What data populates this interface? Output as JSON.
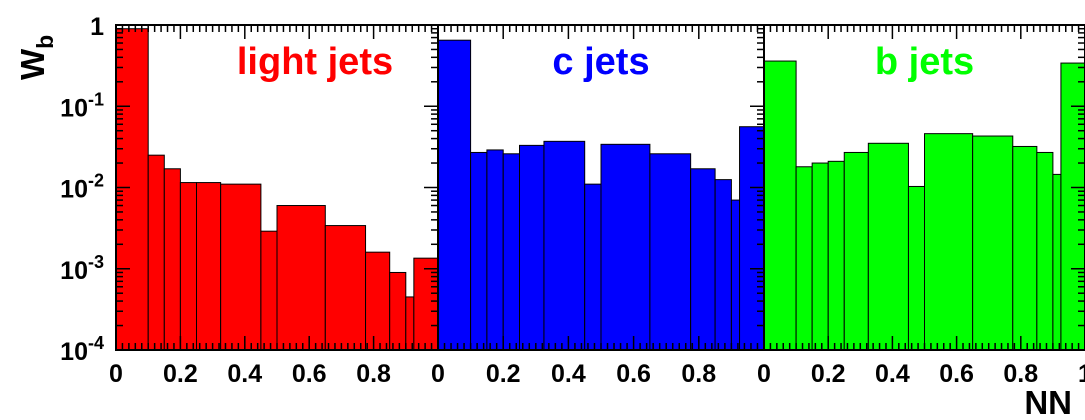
{
  "chart_data": {
    "type": "bar",
    "ylabel": "W",
    "ylabel_subscript": "b",
    "xlabel": "NN",
    "y_scale": "log",
    "ylim": [
      0.0001,
      1
    ],
    "y_tick_values": [
      1,
      0.1,
      0.01,
      0.001,
      0.0001
    ],
    "y_tick_labels": [
      {
        "base": "1",
        "exp": ""
      },
      {
        "base": "10",
        "exp": "-1"
      },
      {
        "base": "10",
        "exp": "-2"
      },
      {
        "base": "10",
        "exp": "-3"
      },
      {
        "base": "10",
        "exp": "-4"
      }
    ],
    "xlim": [
      0,
      1
    ],
    "x_tick_values": [
      0,
      0.2,
      0.4,
      0.6,
      0.8,
      1
    ],
    "panels": [
      {
        "label": "light jets",
        "color": "#ff0000",
        "x_tick_labels": [
          "0",
          "0.2",
          "0.4",
          "0.6",
          "0.8",
          ""
        ],
        "bins": [
          {
            "x0": 0.0,
            "x1": 0.1,
            "y": 0.9
          },
          {
            "x0": 0.1,
            "x1": 0.15,
            "y": 0.025
          },
          {
            "x0": 0.15,
            "x1": 0.2,
            "y": 0.017
          },
          {
            "x0": 0.2,
            "x1": 0.25,
            "y": 0.0115
          },
          {
            "x0": 0.25,
            "x1": 0.325,
            "y": 0.0115
          },
          {
            "x0": 0.325,
            "x1": 0.45,
            "y": 0.011
          },
          {
            "x0": 0.45,
            "x1": 0.5,
            "y": 0.0029
          },
          {
            "x0": 0.5,
            "x1": 0.65,
            "y": 0.006
          },
          {
            "x0": 0.65,
            "x1": 0.775,
            "y": 0.0034
          },
          {
            "x0": 0.775,
            "x1": 0.85,
            "y": 0.0016
          },
          {
            "x0": 0.85,
            "x1": 0.9,
            "y": 0.0009
          },
          {
            "x0": 0.9,
            "x1": 0.925,
            "y": 0.00045
          },
          {
            "x0": 0.925,
            "x1": 1.0,
            "y": 0.00135
          }
        ]
      },
      {
        "label": "c jets",
        "color": "#0000ff",
        "x_tick_labels": [
          "0",
          "0.2",
          "0.4",
          "0.6",
          "0.8",
          ""
        ],
        "bins": [
          {
            "x0": 0.0,
            "x1": 0.1,
            "y": 0.65
          },
          {
            "x0": 0.1,
            "x1": 0.15,
            "y": 0.027
          },
          {
            "x0": 0.15,
            "x1": 0.2,
            "y": 0.029
          },
          {
            "x0": 0.2,
            "x1": 0.25,
            "y": 0.026
          },
          {
            "x0": 0.25,
            "x1": 0.325,
            "y": 0.033
          },
          {
            "x0": 0.325,
            "x1": 0.45,
            "y": 0.037
          },
          {
            "x0": 0.45,
            "x1": 0.5,
            "y": 0.011
          },
          {
            "x0": 0.5,
            "x1": 0.65,
            "y": 0.034
          },
          {
            "x0": 0.65,
            "x1": 0.775,
            "y": 0.026
          },
          {
            "x0": 0.775,
            "x1": 0.85,
            "y": 0.017
          },
          {
            "x0": 0.85,
            "x1": 0.9,
            "y": 0.0125
          },
          {
            "x0": 0.9,
            "x1": 0.925,
            "y": 0.007
          },
          {
            "x0": 0.925,
            "x1": 1.0,
            "y": 0.056
          }
        ]
      },
      {
        "label": "b jets",
        "color": "#00ff00",
        "x_tick_labels": [
          "0",
          "0.2",
          "0.4",
          "0.6",
          "0.8",
          "1"
        ],
        "bins": [
          {
            "x0": 0.0,
            "x1": 0.1,
            "y": 0.36
          },
          {
            "x0": 0.1,
            "x1": 0.15,
            "y": 0.018
          },
          {
            "x0": 0.15,
            "x1": 0.2,
            "y": 0.02
          },
          {
            "x0": 0.2,
            "x1": 0.25,
            "y": 0.021
          },
          {
            "x0": 0.25,
            "x1": 0.325,
            "y": 0.027
          },
          {
            "x0": 0.325,
            "x1": 0.45,
            "y": 0.035
          },
          {
            "x0": 0.45,
            "x1": 0.5,
            "y": 0.0103
          },
          {
            "x0": 0.5,
            "x1": 0.65,
            "y": 0.046
          },
          {
            "x0": 0.65,
            "x1": 0.775,
            "y": 0.043
          },
          {
            "x0": 0.775,
            "x1": 0.85,
            "y": 0.032
          },
          {
            "x0": 0.85,
            "x1": 0.9,
            "y": 0.027
          },
          {
            "x0": 0.9,
            "x1": 0.925,
            "y": 0.0145
          },
          {
            "x0": 0.925,
            "x1": 1.0,
            "y": 0.34
          }
        ]
      }
    ]
  }
}
